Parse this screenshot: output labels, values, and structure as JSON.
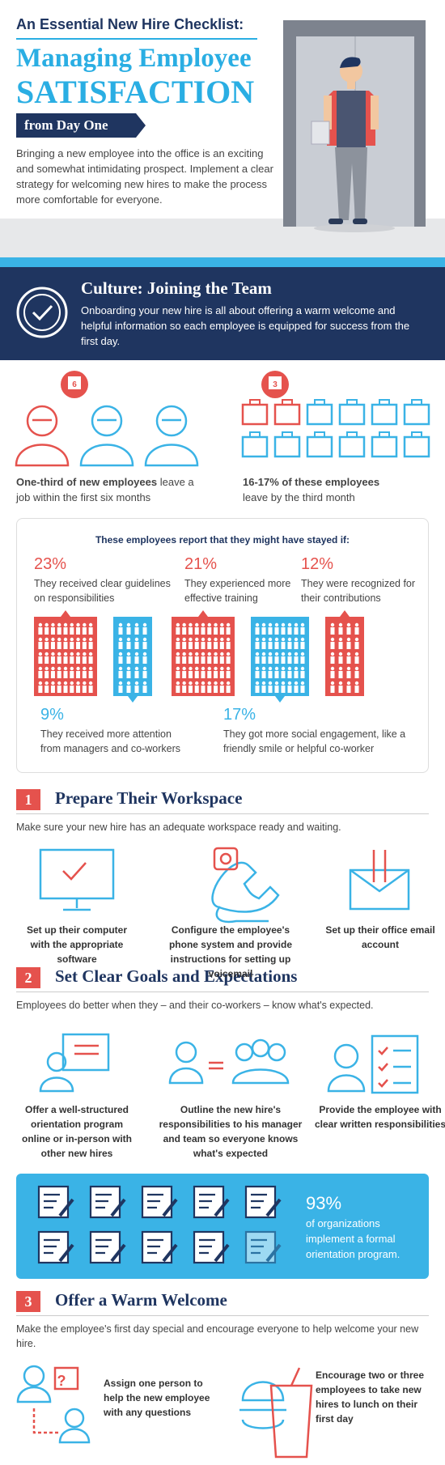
{
  "header": {
    "kicker": "An Essential New Hire Checklist:",
    "title_line1": "Managing Employee",
    "title_line2": "SATISFACTION",
    "banner": "from Day One",
    "intro": "Bringing a new employee into the office is an exciting and somewhat intimidating prospect. Implement a clear strategy for welcoming new hires to make the process more comfortable for everyone."
  },
  "culture": {
    "title": "Culture: Joining the Team",
    "text": "Onboarding your new hire is all about offering a warm welcome and helpful information so each employee is equipped for success from the first day."
  },
  "stats": [
    {
      "badge": "6",
      "bold": "One-third of new employees",
      "text": "leave a job within the first six months"
    },
    {
      "badge": "3",
      "bold": "16-17% of these employees",
      "text": "leave by the third month"
    }
  ],
  "survey": {
    "heading": "These employees report that they might have stayed if:",
    "items": [
      {
        "percent": "23%",
        "text": "They received clear guidelines on responsibilities"
      },
      {
        "percent": "21%",
        "text": "They experienced more effective training"
      },
      {
        "percent": "12%",
        "text": "They were recognized for their contributions"
      },
      {
        "percent": "9%",
        "text": "They received more attention from managers and co-workers"
      },
      {
        "percent": "17%",
        "text": "They got more social engagement, like a friendly smile or helpful co-worker"
      }
    ]
  },
  "sections": [
    {
      "number": "1",
      "title": "Prepare Their Workspace",
      "intro": "Make sure your new hire has an adequate workspace ready and waiting.",
      "items": [
        "Set up their computer with the appropriate software",
        "Configure the employee's phone system and provide instructions for setting up voicemail",
        "Set up their office email account"
      ]
    },
    {
      "number": "2",
      "title": "Set Clear Goals and Expectations",
      "intro": "Employees do better when they – and their co-workers – know what's expected.",
      "items": [
        "Offer a well-structured orientation program online or in-person with other new hires",
        "Outline the new hire's responsibilities to his manager and team so everyone knows what's expected",
        "Provide the employee with clear written responsibilities"
      ]
    },
    {
      "number": "3",
      "title": "Offer a Warm Welcome",
      "intro": "Make the employee's first day special and encourage everyone to help welcome your new hire.",
      "items": [
        "Assign one person to help the new employee with any questions",
        "Encourage two or three employees to take new hires to lunch on their first day"
      ]
    }
  ],
  "orientation_stat": {
    "percent": "93%",
    "text": "of organizations implement a formal orientation program."
  }
}
